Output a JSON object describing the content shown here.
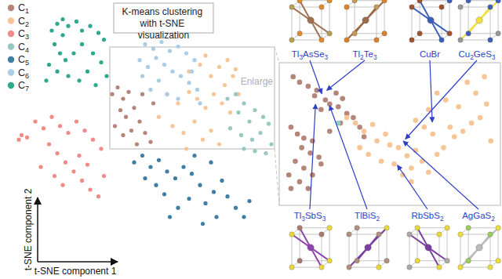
{
  "chart_data": [
    {
      "type": "scatter",
      "title": "K-means clustering with t-SNE visualization",
      "x_label": "t-SNE component 1",
      "y_label": "t-SNE component 2",
      "xlim": [
        0,
        100
      ],
      "ylim": [
        0,
        100
      ],
      "tick_labels": false,
      "legend": "top-left",
      "marker": "circle",
      "series": [
        {
          "name": "C1",
          "color": "#b5857a",
          "x": [
            38,
            40,
            42,
            44,
            41,
            43,
            46,
            48,
            45,
            42,
            50,
            52,
            39,
            47,
            53,
            49
          ],
          "values": [
            62,
            65,
            60,
            63,
            55,
            52,
            56,
            50,
            46,
            44,
            45,
            41,
            48,
            40,
            58,
            62
          ]
        },
        {
          "name": "C2",
          "color": "#f7c596",
          "x": [
            66,
            70,
            74,
            77,
            80,
            83,
            82,
            72,
            79,
            58,
            62,
            66,
            69,
            72,
            75,
            78,
            81,
            60,
            64,
            68,
            71,
            74,
            77,
            55,
            65,
            84
          ],
          "values": [
            72,
            75,
            70,
            74,
            77,
            73,
            70,
            79,
            66,
            62,
            58,
            63,
            60,
            56,
            62,
            58,
            54,
            48,
            45,
            50,
            42,
            46,
            40,
            52,
            38,
            62
          ]
        },
        {
          "name": "C3",
          "color": "#f08c85",
          "x": [
            4,
            5,
            7,
            10,
            13,
            16,
            19,
            22,
            25,
            28,
            31,
            34,
            15,
            18,
            21,
            24,
            27,
            30,
            33,
            20,
            17,
            12,
            26,
            29,
            35
          ],
          "values": [
            42,
            44,
            43,
            50,
            47,
            52,
            48,
            45,
            50,
            46,
            42,
            38,
            40,
            36,
            32,
            28,
            24,
            20,
            17,
            22,
            26,
            30,
            35,
            31,
            26
          ]
        },
        {
          "name": "C4",
          "color": "#97c9c3",
          "x": [
            80,
            83,
            86,
            90,
            93,
            95,
            88,
            84,
            81,
            85,
            89,
            92,
            96,
            94,
            90,
            86
          ],
          "values": [
            60,
            62,
            58,
            55,
            52,
            49,
            50,
            54,
            47,
            44,
            42,
            45,
            40,
            36,
            37,
            38
          ]
        },
        {
          "name": "C5",
          "color": "#3f7fa3",
          "x": [
            46,
            49,
            52,
            55,
            58,
            50,
            54,
            57,
            61,
            64,
            67,
            70,
            66,
            62,
            72,
            75,
            78,
            80,
            83,
            86,
            88,
            76,
            71,
            59,
            68,
            74
          ],
          "values": [
            32,
            35,
            30,
            33,
            28,
            25,
            22,
            18,
            25,
            30,
            27,
            22,
            16,
            12,
            14,
            19,
            24,
            17,
            12,
            8,
            15,
            8,
            5,
            8,
            35,
            32
          ]
        },
        {
          "name": "C6",
          "color": "#a9cde6",
          "x": [
            50,
            53,
            56,
            59,
            62,
            65,
            68,
            48,
            51,
            54,
            57,
            60,
            63,
            66,
            69,
            55,
            52,
            58,
            62,
            67,
            49,
            70
          ],
          "values": [
            84,
            82,
            85,
            81,
            83,
            80,
            77,
            77,
            74,
            78,
            75,
            72,
            70,
            67,
            64,
            68,
            64,
            62,
            60,
            72,
            70,
            58
          ]
        },
        {
          "name": "C7",
          "color": "#2fa98d",
          "x": [
            16,
            18,
            20,
            22,
            25,
            27,
            30,
            33,
            35,
            17,
            19,
            21,
            15,
            18,
            22,
            26,
            29,
            24,
            27,
            31,
            34,
            36,
            32,
            20,
            14
          ],
          "values": [
            90,
            93,
            95,
            92,
            94,
            90,
            92,
            89,
            86,
            84,
            80,
            77,
            75,
            72,
            70,
            68,
            72,
            80,
            84,
            80,
            76,
            70,
            66,
            88,
            68
          ]
        }
      ],
      "annotations": [
        {
          "text": "Enlarge"
        }
      ]
    },
    {
      "type": "scatter",
      "xlim": [
        0,
        100
      ],
      "ylim": [
        0,
        100
      ],
      "tick_labels": false,
      "marker": "circle",
      "series": [
        {
          "color": "#b5857a",
          "x": [
            5,
            8,
            12,
            16,
            15,
            20,
            22,
            18,
            25,
            28,
            26,
            30,
            4,
            7,
            10,
            14,
            9,
            13,
            17,
            6,
            10,
            14,
            8,
            4,
            12,
            18,
            22,
            27,
            33,
            36,
            38,
            3
          ],
          "values": [
            92,
            88,
            85,
            82,
            78,
            75,
            72,
            68,
            80,
            76,
            70,
            65,
            55,
            50,
            47,
            45,
            40,
            36,
            33,
            30,
            25,
            20,
            15,
            10,
            10,
            28,
            52,
            58,
            62,
            55,
            48,
            20
          ]
        },
        {
          "color": "#f7c596",
          "x": [
            30,
            34,
            38,
            42,
            36,
            40,
            44,
            48,
            50,
            54,
            46,
            52,
            58,
            62,
            60,
            65,
            68,
            72,
            75,
            70,
            66,
            62,
            78,
            80,
            84,
            88,
            92,
            95,
            90,
            86,
            94,
            82,
            76,
            72,
            68,
            97,
            60,
            56
          ],
          "values": [
            62,
            58,
            52,
            57,
            40,
            35,
            45,
            50,
            42,
            40,
            30,
            28,
            34,
            38,
            25,
            30,
            22,
            35,
            40,
            50,
            55,
            60,
            55,
            48,
            52,
            58,
            62,
            72,
            80,
            88,
            92,
            70,
            75,
            80,
            68,
            45,
            15,
            20
          ]
        },
        {
          "color": "#97c9c3",
          "x": [
            26
          ],
          "values": [
            58
          ]
        }
      ],
      "annotations": [
        {
          "text": "Tl3AsSe3",
          "x": 18.7,
          "y": 78
        },
        {
          "text": "Tl2Te3",
          "x": 19.8,
          "y": 81
        },
        {
          "text": "CuBr",
          "x": 69.8,
          "y": 57
        },
        {
          "text": "Cu2GeS3",
          "x": 56.5,
          "y": 45
        },
        {
          "text": "Tl3SbS3",
          "x": 15.5,
          "y": 73.6
        },
        {
          "text": "TlBiS2",
          "x": 21.6,
          "y": 72.5
        },
        {
          "text": "RbSbS2",
          "x": 52.9,
          "y": 28.6
        },
        {
          "text": "AgGaS2",
          "x": 55.4,
          "y": 46
        }
      ]
    }
  ]
}
